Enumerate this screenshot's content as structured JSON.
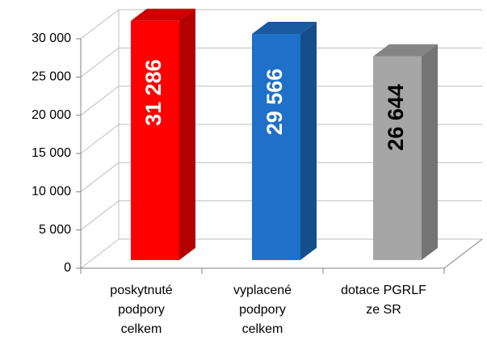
{
  "chart_data": {
    "type": "bar3d",
    "categories": [
      [
        "poskytnuté",
        "podpory",
        "celkem"
      ],
      [
        "vyplacené",
        "podpory",
        "celkem"
      ],
      [
        "dotace PGRLF",
        "ze SR"
      ]
    ],
    "values": [
      31286,
      29566,
      26644
    ],
    "value_labels": [
      "31 286",
      "29 566",
      "26 644"
    ],
    "colors": [
      "#ff0000",
      "#1f70c8",
      "#a6a6a6"
    ],
    "value_label_colors": [
      "#ffffff",
      "#ffffff",
      "#000000"
    ],
    "ylim": [
      0,
      30000
    ],
    "yticks": [
      0,
      {
        "value": 5000,
        "label": "5 000"
      },
      {
        "value": 10000,
        "label": "10 000"
      },
      {
        "value": 15000,
        "label": "15 000"
      },
      {
        "value": 20000,
        "label": "20 000"
      },
      {
        "value": 25000,
        "label": "25 000"
      },
      {
        "value": 30000,
        "label": "30 000"
      }
    ],
    "grid": true
  }
}
